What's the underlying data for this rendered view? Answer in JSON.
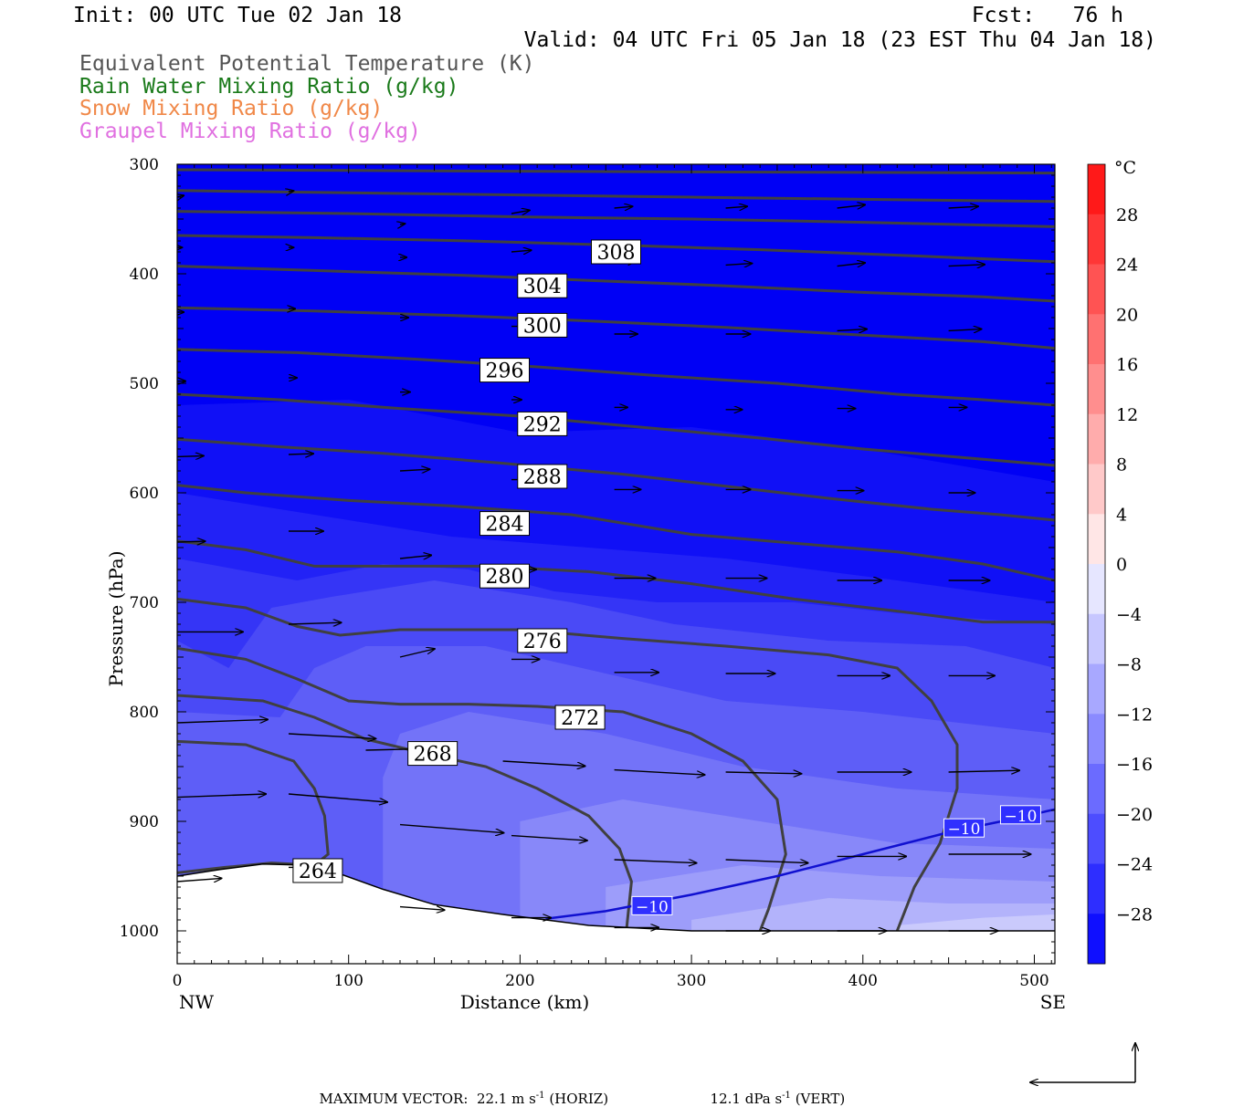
{
  "header": {
    "init": "Init: 00 UTC Tue 02 Jan 18",
    "fcst": "Fcst:   76 h",
    "valid": "Valid: 04 UTC Fri 05 Jan 18 (23 EST Thu 04 Jan 18)"
  },
  "legend": [
    {
      "label": "Equivalent Potential Temperature (K)",
      "color": "#555555"
    },
    {
      "label": "Rain Water Mixing Ratio (g/kg)",
      "color": "#1a7a1a"
    },
    {
      "label": "Snow Mixing Ratio (g/kg)",
      "color": "#f08848"
    },
    {
      "label": "Graupel Mixing Ratio (g/kg)",
      "color": "#e070e0"
    }
  ],
  "footer": {
    "max_label": "MAXIMUM VECTOR:",
    "horiz_value": "22.1 m s",
    "horiz_exp": "-1",
    "horiz_unit": "(HORIZ)",
    "vert_value": "12.1 dPa s",
    "vert_exp": "-1",
    "vert_unit": "(VERT)"
  },
  "chart_data": {
    "type": "cross-section contour",
    "xlabel": "Distance (km)",
    "ylabel": "Pressure (hPa)",
    "xlim": [
      0,
      512
    ],
    "ylim": [
      300,
      1030
    ],
    "x_ticks": [
      0,
      100,
      200,
      300,
      400,
      500
    ],
    "y_ticks": [
      300,
      400,
      500,
      600,
      700,
      800,
      900,
      1000
    ],
    "x_end_labels": {
      "left": "NW",
      "right": "SE"
    },
    "colorbar": {
      "unit": "°C",
      "min": -32,
      "max": 32,
      "step": 4,
      "tick_labels": [
        28,
        24,
        20,
        16,
        12,
        8,
        4,
        0,
        -4,
        -8,
        -12,
        -16,
        -20,
        -24,
        -28
      ]
    },
    "theta_e_contours": [
      {
        "value": 264,
        "label_at": [
          82,
          945
        ],
        "points": [
          [
            0,
            947
          ],
          [
            28,
            942
          ],
          [
            55,
            938
          ],
          [
            80,
            940
          ],
          [
            88,
            930
          ],
          [
            86,
            895
          ],
          [
            80,
            870
          ],
          [
            68,
            845
          ],
          [
            40,
            830
          ],
          [
            0,
            827
          ]
        ]
      },
      {
        "value": 268,
        "label_at": [
          149,
          838
        ],
        "points": [
          [
            0,
            785
          ],
          [
            50,
            790
          ],
          [
            80,
            805
          ],
          [
            110,
            825
          ],
          [
            150,
            840
          ],
          [
            180,
            850
          ],
          [
            210,
            870
          ],
          [
            240,
            895
          ],
          [
            258,
            925
          ],
          [
            265,
            955
          ],
          [
            262,
            1000
          ]
        ]
      },
      {
        "value": 272,
        "label_at": [
          235,
          805
        ],
        "points": [
          [
            0,
            742
          ],
          [
            40,
            752
          ],
          [
            70,
            770
          ],
          [
            100,
            790
          ],
          [
            130,
            793
          ],
          [
            170,
            793
          ],
          [
            210,
            795
          ],
          [
            260,
            800
          ],
          [
            300,
            820
          ],
          [
            330,
            845
          ],
          [
            350,
            880
          ],
          [
            355,
            930
          ],
          [
            345,
            980
          ],
          [
            340,
            1000
          ]
        ]
      },
      {
        "value": 276,
        "label_at": [
          213,
          735
        ],
        "points": [
          [
            0,
            697
          ],
          [
            40,
            705
          ],
          [
            70,
            722
          ],
          [
            95,
            730
          ],
          [
            130,
            725
          ],
          [
            200,
            725
          ],
          [
            260,
            733
          ],
          [
            320,
            740
          ],
          [
            380,
            748
          ],
          [
            420,
            760
          ],
          [
            440,
            790
          ],
          [
            455,
            830
          ],
          [
            455,
            870
          ],
          [
            445,
            920
          ],
          [
            430,
            960
          ],
          [
            420,
            1000
          ]
        ]
      },
      {
        "value": 280,
        "label_at": [
          191,
          676
        ],
        "points": [
          [
            0,
            644
          ],
          [
            40,
            652
          ],
          [
            80,
            667
          ],
          [
            120,
            667
          ],
          [
            180,
            667
          ],
          [
            240,
            672
          ],
          [
            300,
            683
          ],
          [
            360,
            697
          ],
          [
            420,
            708
          ],
          [
            470,
            718
          ],
          [
            512,
            718
          ]
        ]
      },
      {
        "value": 284,
        "label_at": [
          191,
          628
        ],
        "points": [
          [
            0,
            593
          ],
          [
            40,
            600
          ],
          [
            100,
            607
          ],
          [
            160,
            612
          ],
          [
            230,
            620
          ],
          [
            300,
            638
          ],
          [
            360,
            646
          ],
          [
            420,
            654
          ],
          [
            470,
            665
          ],
          [
            512,
            680
          ]
        ]
      },
      {
        "value": 288,
        "label_at": [
          213,
          585
        ],
        "points": [
          [
            0,
            551
          ],
          [
            60,
            558
          ],
          [
            120,
            564
          ],
          [
            190,
            573
          ],
          [
            260,
            583
          ],
          [
            320,
            594
          ],
          [
            380,
            605
          ],
          [
            440,
            615
          ],
          [
            480,
            620
          ],
          [
            512,
            625
          ]
        ]
      },
      {
        "value": 292,
        "label_at": [
          213,
          537
        ],
        "points": [
          [
            0,
            510
          ],
          [
            60,
            515
          ],
          [
            130,
            523
          ],
          [
            200,
            530
          ],
          [
            270,
            540
          ],
          [
            340,
            550
          ],
          [
            400,
            560
          ],
          [
            460,
            568
          ],
          [
            512,
            575
          ]
        ]
      },
      {
        "value": 296,
        "label_at": [
          191,
          488
        ],
        "points": [
          [
            0,
            469
          ],
          [
            70,
            472
          ],
          [
            140,
            478
          ],
          [
            210,
            485
          ],
          [
            280,
            493
          ],
          [
            350,
            500
          ],
          [
            420,
            510
          ],
          [
            470,
            515
          ],
          [
            512,
            520
          ]
        ]
      },
      {
        "value": 300,
        "label_at": [
          213,
          447
        ],
        "points": [
          [
            0,
            431
          ],
          [
            80,
            434
          ],
          [
            160,
            438
          ],
          [
            240,
            443
          ],
          [
            320,
            449
          ],
          [
            400,
            456
          ],
          [
            470,
            462
          ],
          [
            512,
            468
          ]
        ]
      },
      {
        "value": 304,
        "label_at": [
          213,
          411
        ],
        "points": [
          [
            0,
            393
          ],
          [
            80,
            397
          ],
          [
            160,
            401
          ],
          [
            240,
            406
          ],
          [
            320,
            411
          ],
          [
            400,
            417
          ],
          [
            470,
            421
          ],
          [
            512,
            425
          ]
        ]
      },
      {
        "value": 308,
        "label_at": [
          256,
          380
        ],
        "points": [
          [
            0,
            365
          ],
          [
            80,
            367
          ],
          [
            170,
            370
          ],
          [
            260,
            374
          ],
          [
            340,
            378
          ],
          [
            420,
            383
          ],
          [
            512,
            389
          ]
        ]
      },
      {
        "value": "",
        "points": [
          [
            0,
            343
          ],
          [
            100,
            345
          ],
          [
            200,
            348
          ],
          [
            300,
            350
          ],
          [
            400,
            353
          ],
          [
            512,
            357
          ]
        ]
      },
      {
        "value": "",
        "points": [
          [
            0,
            324
          ],
          [
            100,
            326
          ],
          [
            200,
            328
          ],
          [
            300,
            330
          ],
          [
            400,
            332
          ],
          [
            512,
            334
          ]
        ]
      },
      {
        "value": "",
        "points": [
          [
            0,
            305
          ],
          [
            150,
            306
          ],
          [
            300,
            307
          ],
          [
            512,
            308
          ]
        ]
      }
    ],
    "isotherm_m10": {
      "value": -10,
      "labels": [
        {
          "text": "−10",
          "at": [
            277,
            977
          ]
        },
        {
          "text": "−10",
          "at": [
            459,
            906
          ]
        },
        {
          "text": "−10",
          "at": [
            492,
            894
          ]
        }
      ],
      "points": [
        [
          215,
          989
        ],
        [
          250,
          982
        ],
        [
          300,
          967
        ],
        [
          350,
          950
        ],
        [
          400,
          930
        ],
        [
          450,
          910
        ],
        [
          490,
          897
        ],
        [
          512,
          889
        ]
      ]
    },
    "terrain": [
      [
        0,
        950
      ],
      [
        25,
        944
      ],
      [
        50,
        939
      ],
      [
        75,
        940
      ],
      [
        95,
        948
      ],
      [
        120,
        962
      ],
      [
        150,
        976
      ],
      [
        190,
        985
      ],
      [
        240,
        995
      ],
      [
        300,
        1000
      ],
      [
        512,
        1000
      ]
    ],
    "wind_vectors": [
      {
        "x": 0,
        "p": 330,
        "u": 0.4,
        "v": -0.1
      },
      {
        "x": 65,
        "p": 325,
        "u": 0.3,
        "v": -0.05
      },
      {
        "x": 130,
        "p": 355,
        "u": 0.3,
        "v": -0.05
      },
      {
        "x": 195,
        "p": 345,
        "u": 1.1,
        "v": -0.2
      },
      {
        "x": 255,
        "p": 340,
        "u": 1.1,
        "v": -0.1
      },
      {
        "x": 320,
        "p": 340,
        "u": 1.3,
        "v": -0.1
      },
      {
        "x": 385,
        "p": 340,
        "u": 1.7,
        "v": -0.2
      },
      {
        "x": 450,
        "p": 340,
        "u": 1.8,
        "v": -0.1
      },
      {
        "x": 0,
        "p": 376,
        "u": 0.3,
        "v": 0
      },
      {
        "x": 65,
        "p": 376,
        "u": 0.3,
        "v": 0
      },
      {
        "x": 130,
        "p": 385,
        "u": 0.4,
        "v": 0
      },
      {
        "x": 195,
        "p": 380,
        "u": 1.2,
        "v": -0.1
      },
      {
        "x": 255,
        "p": 390,
        "u": 1.3,
        "v": -0.1
      },
      {
        "x": 320,
        "p": 392,
        "u": 1.6,
        "v": -0.1
      },
      {
        "x": 385,
        "p": 393,
        "u": 1.7,
        "v": -0.2
      },
      {
        "x": 450,
        "p": 393,
        "u": 2.2,
        "v": -0.1
      },
      {
        "x": 0,
        "p": 435,
        "u": 0.4,
        "v": 0
      },
      {
        "x": 65,
        "p": 432,
        "u": 0.4,
        "v": 0
      },
      {
        "x": 130,
        "p": 440,
        "u": 0.5,
        "v": 0
      },
      {
        "x": 195,
        "p": 448,
        "u": 1.0,
        "v": 0
      },
      {
        "x": 255,
        "p": 455,
        "u": 1.4,
        "v": 0
      },
      {
        "x": 320,
        "p": 455,
        "u": 1.5,
        "v": 0
      },
      {
        "x": 385,
        "p": 452,
        "u": 1.8,
        "v": -0.1
      },
      {
        "x": 450,
        "p": 452,
        "u": 2.0,
        "v": -0.1
      },
      {
        "x": 0,
        "p": 498,
        "u": 0.5,
        "v": 0
      },
      {
        "x": 65,
        "p": 495,
        "u": 0.5,
        "v": 0
      },
      {
        "x": 130,
        "p": 508,
        "u": 0.6,
        "v": 0
      },
      {
        "x": 195,
        "p": 515,
        "u": 0.6,
        "v": 0
      },
      {
        "x": 255,
        "p": 522,
        "u": 0.8,
        "v": 0
      },
      {
        "x": 320,
        "p": 524,
        "u": 1.0,
        "v": 0
      },
      {
        "x": 385,
        "p": 523,
        "u": 1.1,
        "v": 0
      },
      {
        "x": 450,
        "p": 522,
        "u": 1.1,
        "v": 0
      },
      {
        "x": 0,
        "p": 567,
        "u": 1.6,
        "v": -0.05
      },
      {
        "x": 65,
        "p": 565,
        "u": 1.5,
        "v": -0.05
      },
      {
        "x": 130,
        "p": 580,
        "u": 1.8,
        "v": -0.1
      },
      {
        "x": 195,
        "p": 588,
        "u": 1.0,
        "v": 0
      },
      {
        "x": 255,
        "p": 597,
        "u": 1.6,
        "v": 0
      },
      {
        "x": 320,
        "p": 597,
        "u": 1.5,
        "v": 0
      },
      {
        "x": 385,
        "p": 598,
        "u": 1.6,
        "v": 0
      },
      {
        "x": 450,
        "p": 600,
        "u": 1.6,
        "v": 0
      },
      {
        "x": 0,
        "p": 645,
        "u": 1.7,
        "v": -0.05
      },
      {
        "x": 65,
        "p": 635,
        "u": 2.1,
        "v": 0
      },
      {
        "x": 130,
        "p": 660,
        "u": 1.9,
        "v": -0.2
      },
      {
        "x": 195,
        "p": 670,
        "u": 1.5,
        "v": 0
      },
      {
        "x": 255,
        "p": 678,
        "u": 2.5,
        "v": 0
      },
      {
        "x": 320,
        "p": 678,
        "u": 2.5,
        "v": 0
      },
      {
        "x": 385,
        "p": 680,
        "u": 2.7,
        "v": 0
      },
      {
        "x": 450,
        "p": 680,
        "u": 2.5,
        "v": 0
      },
      {
        "x": 0,
        "p": 727,
        "u": 4.0,
        "v": 0
      },
      {
        "x": 65,
        "p": 720,
        "u": 3.2,
        "v": -0.1
      },
      {
        "x": 130,
        "p": 750,
        "u": 2.1,
        "v": -0.5
      },
      {
        "x": 195,
        "p": 752,
        "u": 1.7,
        "v": 0
      },
      {
        "x": 255,
        "p": 764,
        "u": 2.7,
        "v": 0
      },
      {
        "x": 320,
        "p": 765,
        "u": 3.0,
        "v": 0
      },
      {
        "x": 385,
        "p": 767,
        "u": 3.2,
        "v": 0
      },
      {
        "x": 450,
        "p": 767,
        "u": 2.8,
        "v": 0
      },
      {
        "x": 0,
        "p": 810,
        "u": 5.5,
        "v": -0.2
      },
      {
        "x": 65,
        "p": 820,
        "u": 5.3,
        "v": 0.3
      },
      {
        "x": 110,
        "p": 835,
        "u": 4.2,
        "v": -0.1
      },
      {
        "x": 190,
        "p": 845,
        "u": 5.0,
        "v": 0.3
      },
      {
        "x": 255,
        "p": 853,
        "u": 5.5,
        "v": 0.3
      },
      {
        "x": 320,
        "p": 855,
        "u": 4.6,
        "v": 0.1
      },
      {
        "x": 385,
        "p": 855,
        "u": 4.5,
        "v": 0
      },
      {
        "x": 450,
        "p": 855,
        "u": 4.3,
        "v": -0.1
      },
      {
        "x": 0,
        "p": 878,
        "u": 5.4,
        "v": -0.2
      },
      {
        "x": 65,
        "p": 875,
        "u": 6.0,
        "v": 0.5
      },
      {
        "x": 130,
        "p": 903,
        "u": 6.3,
        "v": 0.5
      },
      {
        "x": 195,
        "p": 913,
        "u": 4.6,
        "v": 0.3
      },
      {
        "x": 255,
        "p": 935,
        "u": 5.0,
        "v": 0.2
      },
      {
        "x": 320,
        "p": 935,
        "u": 5.0,
        "v": 0.2
      },
      {
        "x": 385,
        "p": 932,
        "u": 4.2,
        "v": 0
      },
      {
        "x": 450,
        "p": 930,
        "u": 5.0,
        "v": 0
      },
      {
        "x": 0,
        "p": 955,
        "u": 2.7,
        "v": -0.2
      },
      {
        "x": 65,
        "p": 942,
        "u": 2.2,
        "v": 0
      },
      {
        "x": 130,
        "p": 978,
        "u": 2.7,
        "v": 0.2
      },
      {
        "x": 195,
        "p": 988,
        "u": 2.4,
        "v": 0
      },
      {
        "x": 255,
        "p": 997,
        "u": 2.7,
        "v": 0
      },
      {
        "x": 320,
        "p": 1000,
        "u": 2.7,
        "v": 0
      },
      {
        "x": 385,
        "p": 1000,
        "u": 3.0,
        "v": 0
      },
      {
        "x": 450,
        "p": 1000,
        "u": 3.0,
        "v": 0
      }
    ]
  }
}
